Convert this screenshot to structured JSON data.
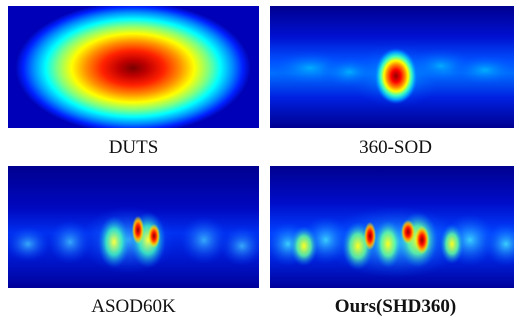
{
  "figure": {
    "panels": [
      {
        "label": "DUTS",
        "emphasis": false,
        "heatmap_kind": "center-gaussian"
      },
      {
        "label": "360-SOD",
        "emphasis": false,
        "heatmap_kind": "equator-band"
      },
      {
        "label": "ASOD60K",
        "emphasis": false,
        "heatmap_kind": "multi-object"
      },
      {
        "label": "Ours(SHD360)",
        "emphasis": true,
        "heatmap_kind": "multi-object-dense"
      }
    ],
    "colormap": [
      "#00008f",
      "#0000ff",
      "#0080ff",
      "#00ffff",
      "#80ff80",
      "#ffff00",
      "#ff8000",
      "#ff0000",
      "#800000"
    ]
  }
}
